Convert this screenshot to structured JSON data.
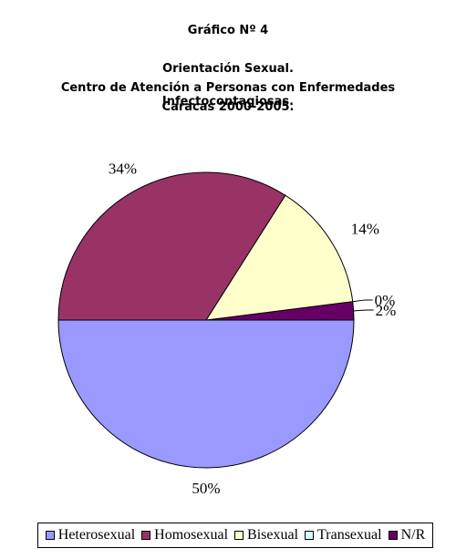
{
  "header": {
    "graph_number": "Gráfico Nº 4",
    "title": "Orientación Sexual.",
    "subtitle": "Centro de Atención a Personas con Enfermedades Infectocontagiosas.",
    "period": "Caracas 2000-2005."
  },
  "chart_data": {
    "type": "pie",
    "title": "Orientación Sexual.",
    "categories": [
      "Heterosexual",
      "Homosexual",
      "Bisexual",
      "Transexual",
      "N/R"
    ],
    "values": [
      50,
      34,
      14,
      0,
      2
    ],
    "value_labels": [
      "50%",
      "34%",
      "14%",
      "0%",
      "2%"
    ],
    "colors": [
      "#9999ff",
      "#993366",
      "#ffffcc",
      "#ccffff",
      "#660066"
    ],
    "legend_position": "bottom",
    "start_direction": "clockwise from 3 o'clock"
  }
}
